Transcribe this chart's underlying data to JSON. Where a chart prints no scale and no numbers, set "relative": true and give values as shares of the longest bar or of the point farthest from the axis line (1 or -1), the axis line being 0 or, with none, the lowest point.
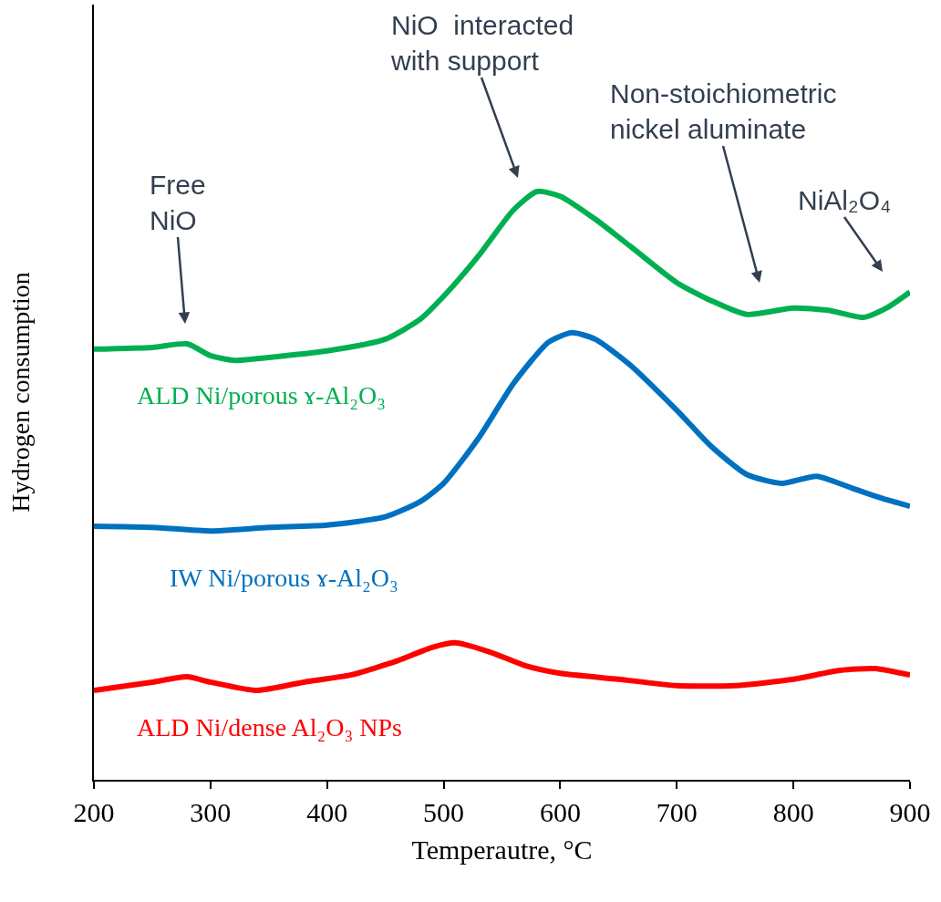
{
  "chart_data": {
    "type": "line",
    "relative": true,
    "xlabel": "Temperautre, °C",
    "ylabel": "Hydrogen consumption",
    "xlim": [
      200,
      900
    ],
    "xticks": [
      200,
      300,
      400,
      500,
      600,
      700,
      800,
      900
    ],
    "legend": false,
    "series": [
      {
        "name": "ALD Ni/porous ɤ-Al₂O₃",
        "color": "#00b050",
        "x": [
          200,
          250,
          280,
          300,
          320,
          350,
          400,
          450,
          480,
          500,
          530,
          560,
          580,
          600,
          630,
          660,
          700,
          730,
          760,
          800,
          830,
          860,
          880,
          900
        ],
        "values": [
          0.732,
          0.735,
          0.741,
          0.721,
          0.713,
          0.718,
          0.729,
          0.749,
          0.783,
          0.822,
          0.891,
          0.969,
          1.0,
          0.992,
          0.953,
          0.907,
          0.845,
          0.814,
          0.791,
          0.802,
          0.798,
          0.786,
          0.802,
          0.829
        ]
      },
      {
        "name": "IW Ni/porous ɤ-Al₂O₃",
        "color": "#0070c0",
        "x": [
          200,
          250,
          300,
          350,
          400,
          450,
          480,
          500,
          530,
          560,
          590,
          610,
          630,
          660,
          700,
          730,
          760,
          790,
          820,
          850,
          880,
          900
        ],
        "values": [
          0.431,
          0.429,
          0.423,
          0.429,
          0.433,
          0.447,
          0.473,
          0.504,
          0.581,
          0.674,
          0.744,
          0.76,
          0.749,
          0.705,
          0.628,
          0.566,
          0.519,
          0.504,
          0.516,
          0.496,
          0.476,
          0.465
        ]
      },
      {
        "name": "ALD Ni/dense Al₂O₃ NPs",
        "color": "#ff0000",
        "x": [
          200,
          250,
          280,
          300,
          340,
          380,
          420,
          460,
          490,
          510,
          540,
          570,
          600,
          650,
          700,
          750,
          800,
          840,
          870,
          900
        ],
        "values": [
          0.152,
          0.166,
          0.175,
          0.166,
          0.152,
          0.166,
          0.178,
          0.202,
          0.225,
          0.233,
          0.217,
          0.194,
          0.181,
          0.171,
          0.16,
          0.16,
          0.171,
          0.186,
          0.189,
          0.178
        ]
      }
    ],
    "annotations": [
      "Free\nNiO",
      "NiO  interacted\nwith support",
      "Non-stoichiometric\nnickel aluminate",
      "NiAl₂O₄"
    ]
  }
}
